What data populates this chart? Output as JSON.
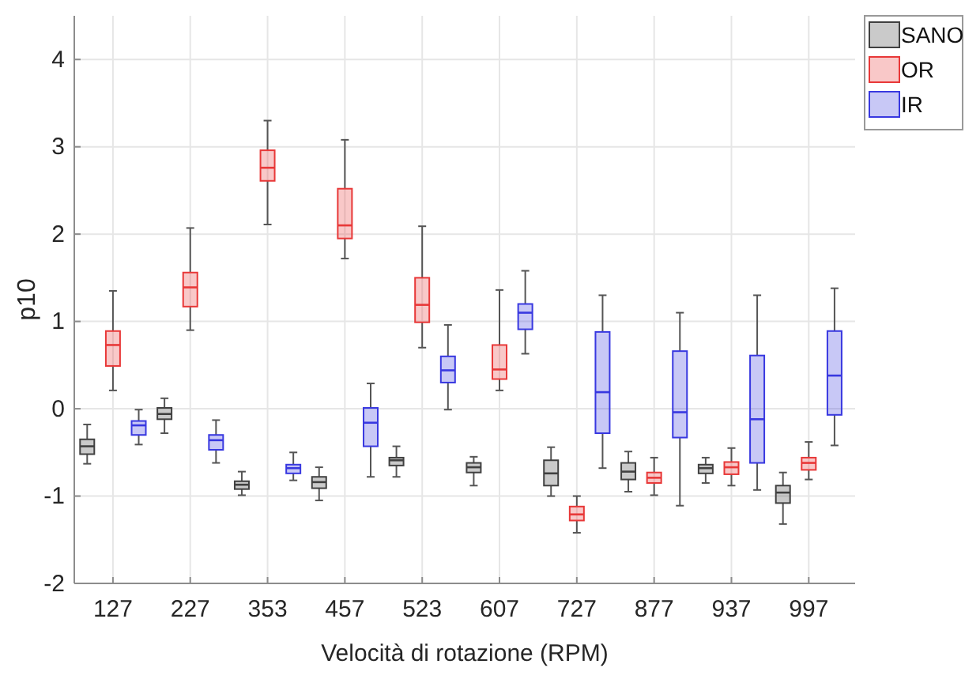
{
  "chart_data": {
    "type": "box",
    "xlabel": "Velocità di rotazione (RPM)",
    "ylabel": "p10",
    "categories": [
      "127",
      "227",
      "353",
      "457",
      "523",
      "607",
      "727",
      "877",
      "937",
      "997"
    ],
    "ylim": [
      -2,
      4.5
    ],
    "yticks": [
      -2,
      -1,
      0,
      1,
      2,
      3,
      4
    ],
    "grid": true,
    "legend": "top right",
    "series": [
      {
        "name": "SANO",
        "color": "#404040",
        "boxes": [
          {
            "low": -0.63,
            "q1": -0.52,
            "median": -0.43,
            "q3": -0.35,
            "high": -0.18
          },
          {
            "low": -0.28,
            "q1": -0.12,
            "median": -0.06,
            "q3": 0.01,
            "high": 0.12
          },
          {
            "low": -0.99,
            "q1": -0.92,
            "median": -0.87,
            "q3": -0.83,
            "high": -0.72
          },
          {
            "low": -1.05,
            "q1": -0.91,
            "median": -0.84,
            "q3": -0.78,
            "high": -0.67
          },
          {
            "low": -0.78,
            "q1": -0.65,
            "median": -0.59,
            "q3": -0.56,
            "high": -0.43
          },
          {
            "low": -0.88,
            "q1": -0.73,
            "median": -0.67,
            "q3": -0.62,
            "high": -0.55
          },
          {
            "low": -1.0,
            "q1": -0.88,
            "median": -0.74,
            "q3": -0.59,
            "high": -0.44
          },
          {
            "low": -0.95,
            "q1": -0.81,
            "median": -0.72,
            "q3": -0.62,
            "high": -0.49
          },
          {
            "low": -0.85,
            "q1": -0.74,
            "median": -0.68,
            "q3": -0.64,
            "high": -0.56
          },
          {
            "low": -1.32,
            "q1": -1.08,
            "median": -0.96,
            "q3": -0.88,
            "high": -0.73
          }
        ]
      },
      {
        "name": "OR",
        "color": "#e83838",
        "boxes": [
          {
            "low": 0.21,
            "q1": 0.49,
            "median": 0.73,
            "q3": 0.89,
            "high": 1.35
          },
          {
            "low": 0.9,
            "q1": 1.17,
            "median": 1.39,
            "q3": 1.56,
            "high": 2.07
          },
          {
            "low": 2.11,
            "q1": 2.61,
            "median": 2.76,
            "q3": 2.96,
            "high": 3.3
          },
          {
            "low": 1.72,
            "q1": 1.95,
            "median": 2.1,
            "q3": 2.52,
            "high": 3.08
          },
          {
            "low": 0.7,
            "q1": 0.99,
            "median": 1.19,
            "q3": 1.5,
            "high": 2.09
          },
          {
            "low": 0.21,
            "q1": 0.34,
            "median": 0.45,
            "q3": 0.73,
            "high": 1.36
          },
          {
            "low": -1.42,
            "q1": -1.28,
            "median": -1.21,
            "q3": -1.12,
            "high": -1.0
          },
          {
            "low": -0.99,
            "q1": -0.85,
            "median": -0.79,
            "q3": -0.73,
            "high": -0.56
          },
          {
            "low": -0.88,
            "q1": -0.75,
            "median": -0.67,
            "q3": -0.61,
            "high": -0.45
          },
          {
            "low": -0.81,
            "q1": -0.7,
            "median": -0.62,
            "q3": -0.56,
            "high": -0.38
          }
        ]
      },
      {
        "name": "IR",
        "color": "#3838e0",
        "boxes": [
          {
            "low": -0.41,
            "q1": -0.3,
            "median": -0.19,
            "q3": -0.14,
            "high": -0.01
          },
          {
            "low": -0.62,
            "q1": -0.47,
            "median": -0.36,
            "q3": -0.3,
            "high": -0.13
          },
          {
            "low": -0.82,
            "q1": -0.74,
            "median": -0.68,
            "q3": -0.64,
            "high": -0.5
          },
          {
            "low": -0.78,
            "q1": -0.43,
            "median": -0.16,
            "q3": 0.01,
            "high": 0.29
          },
          {
            "low": -0.01,
            "q1": 0.3,
            "median": 0.44,
            "q3": 0.6,
            "high": 0.96
          },
          {
            "low": 0.63,
            "q1": 0.91,
            "median": 1.1,
            "q3": 1.2,
            "high": 1.58
          },
          {
            "low": -0.68,
            "q1": -0.28,
            "median": 0.19,
            "q3": 0.88,
            "high": 1.3
          },
          {
            "low": -1.11,
            "q1": -0.33,
            "median": -0.04,
            "q3": 0.66,
            "high": 1.1
          },
          {
            "low": -0.93,
            "q1": -0.62,
            "median": -0.12,
            "q3": 0.61,
            "high": 1.3
          },
          {
            "low": -0.42,
            "q1": -0.07,
            "median": 0.38,
            "q3": 0.89,
            "high": 1.38
          }
        ]
      }
    ]
  }
}
